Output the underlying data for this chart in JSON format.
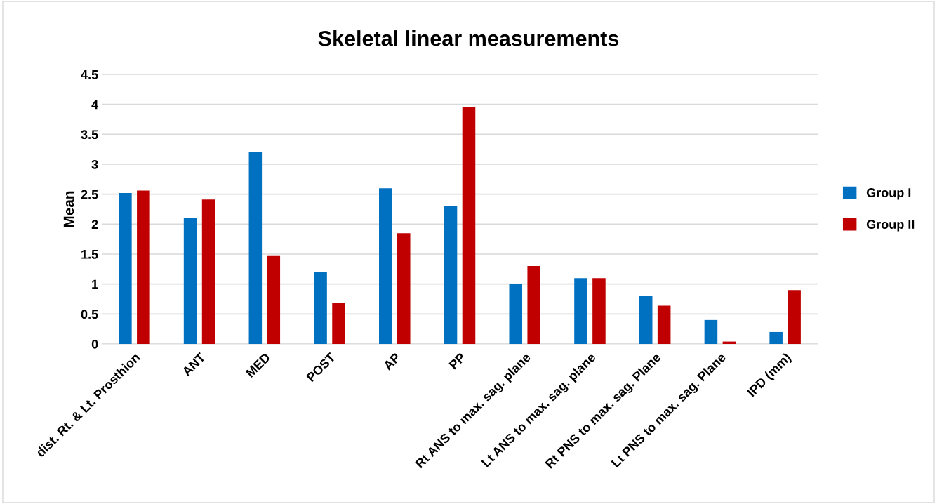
{
  "chart_data": {
    "type": "bar",
    "title": "Skeletal linear measurements",
    "ylabel": "Mean",
    "categories": [
      "dist. Rt. & Lt. Prosthion",
      "ANT",
      "MED",
      "POST",
      "AP",
      "PP",
      "Rt ANS to max. sag. plane",
      "Lt ANS to max. sag. plane",
      "Rt PNS to max. sag. Plane",
      "Lt PNS to max. sag. Plane",
      "IPD (mm)"
    ],
    "series": [
      {
        "name": "Group I",
        "color": "#0070c0",
        "values": [
          2.52,
          2.11,
          3.2,
          1.2,
          2.6,
          2.3,
          1.0,
          1.1,
          0.8,
          0.4,
          0.2
        ]
      },
      {
        "name": "Group II",
        "color": "#c00000",
        "values": [
          2.56,
          2.41,
          1.48,
          0.68,
          1.85,
          3.95,
          1.3,
          1.1,
          0.64,
          0.04,
          0.9
        ]
      }
    ],
    "ylim": [
      0,
      4.5
    ],
    "yticks": [
      0,
      0.5,
      1,
      1.5,
      2,
      2.5,
      3,
      3.5,
      4,
      4.5
    ],
    "grid": "y",
    "legend": "right"
  }
}
